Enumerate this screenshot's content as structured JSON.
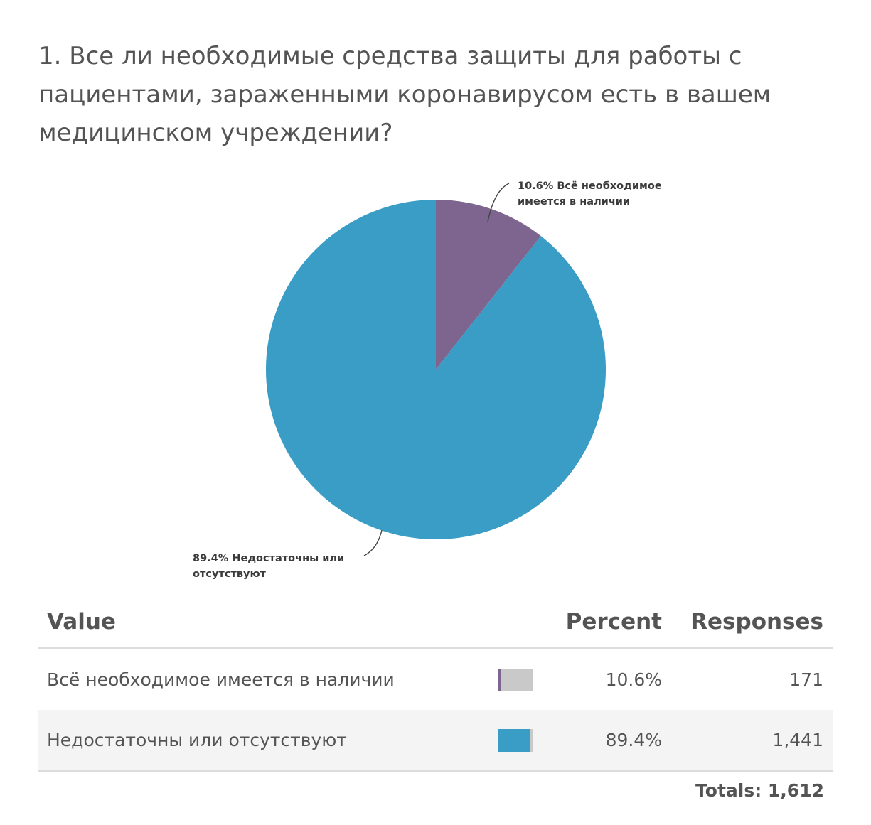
{
  "question": {
    "title": "1. Все ли необходимые средства защиты для работы с пациентами, зараженными коронавирусом есть в вашем медицинском учреждении?"
  },
  "chart_data": {
    "type": "pie",
    "slices": [
      {
        "label": "Всё необходимое имеется в наличии",
        "percent": 10.6,
        "color": "#7d658f"
      },
      {
        "label": "Недостаточны или отсутствуют",
        "percent": 89.4,
        "color": "#3a9dc5"
      }
    ],
    "labels": [
      {
        "line1": "10.6% Всё необходимое",
        "line2": "имеется в наличии"
      },
      {
        "line1": "89.4% Недостаточны или",
        "line2": "отсутствуют"
      }
    ]
  },
  "table": {
    "headers": {
      "value": "Value",
      "percent": "Percent",
      "responses": "Responses"
    },
    "rows": [
      {
        "value": "Всё необходимое имеется в наличии",
        "percent": "10.6%",
        "fraction": 0.106,
        "responses": "171",
        "color": "#7d658f"
      },
      {
        "value": "Недостаточны или отсутствуют",
        "percent": "89.4%",
        "fraction": 0.894,
        "responses": "1,441",
        "color": "#3a9dc5"
      }
    ],
    "totals": "Totals: 1,612"
  }
}
